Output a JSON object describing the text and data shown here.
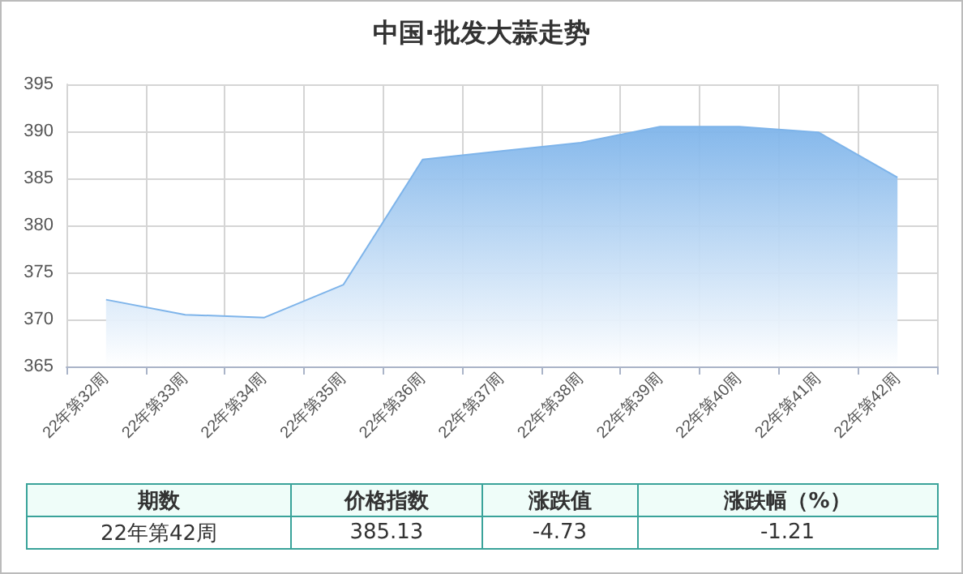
{
  "chart_data": {
    "type": "area",
    "title": "中国·批发大蒜走势",
    "categories": [
      "22年第32周",
      "22年第33周",
      "22年第34周",
      "22年第35周",
      "22年第36周",
      "22年第37周",
      "22年第38周",
      "22年第39周",
      "22年第40周",
      "22年第41周",
      "22年第42周"
    ],
    "series": [
      {
        "color": "#7eb4ea",
        "values": [
          372.1,
          370.5,
          370.2,
          373.7,
          387.0,
          387.9,
          388.8,
          390.5,
          390.5,
          389.9,
          385.1
        ]
      }
    ],
    "ylim": [
      365,
      395
    ],
    "yticks": [
      365,
      370,
      375,
      380,
      385,
      390,
      395
    ],
    "grid": true,
    "annotations": [
      "期数",
      "价格指数",
      "涨跌值",
      "涨跌幅（%）",
      "22年第42周",
      "385.13",
      "-4.73",
      "-1.21"
    ]
  }
}
